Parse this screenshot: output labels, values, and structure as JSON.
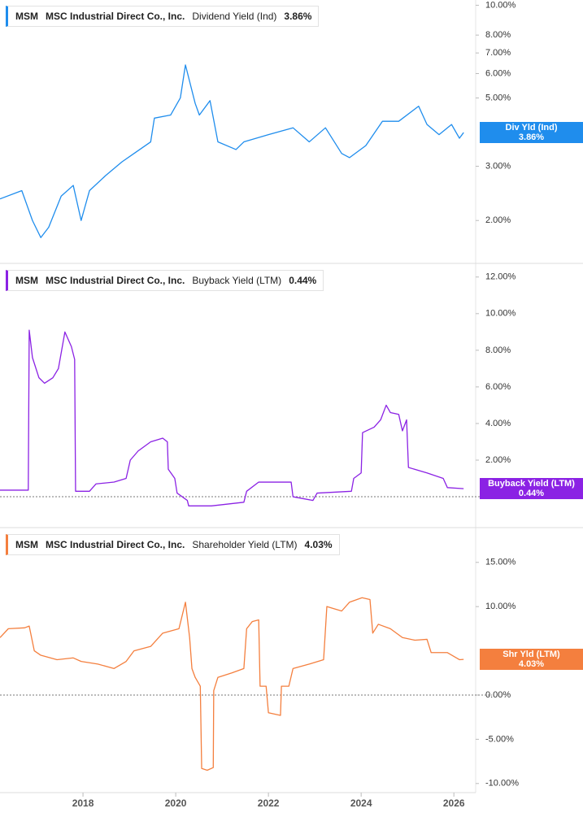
{
  "chart_data": [
    {
      "type": "line",
      "ticker": "MSM",
      "company": "MSC Industrial Direct Co., Inc.",
      "log_scale": true,
      "zero_line": false,
      "xlim": [
        2016.21,
        2026.47
      ],
      "ylim": [
        1.46,
        10.4
      ],
      "yticks": [
        {
          "value": 2,
          "label": "2.00%"
        },
        {
          "value": 3,
          "label": "3.00%"
        },
        {
          "value": 5,
          "label": "5.00%"
        },
        {
          "value": 6,
          "label": "6.00%"
        },
        {
          "value": 7,
          "label": "7.00%"
        },
        {
          "value": 8,
          "label": "8.00%"
        },
        {
          "value": 10,
          "label": "10.00%"
        }
      ],
      "x": [
        2016.21,
        2016.68,
        2016.91,
        2017.09,
        2017.26,
        2017.53,
        2017.79,
        2017.96,
        2018.14,
        2018.49,
        2018.84,
        2019.1,
        2019.46,
        2019.54,
        2019.89,
        2020.1,
        2020.21,
        2020.42,
        2020.51,
        2020.74,
        2020.91,
        2021.3,
        2021.47,
        2022.0,
        2022.53,
        2022.88,
        2023.23,
        2023.58,
        2023.75,
        2024.1,
        2024.46,
        2024.81,
        2025.24,
        2025.42,
        2025.68,
        2025.95,
        2026.12,
        2026.21
      ],
      "series": [
        {
          "name": "Dividend Yield (Ind)",
          "badge_label": "Div Yld (Ind)",
          "color": "#1f8ded",
          "values": [
            2.35,
            2.5,
            2.0,
            1.76,
            1.9,
            2.4,
            2.6,
            2.0,
            2.5,
            2.8,
            3.1,
            3.3,
            3.6,
            4.3,
            4.4,
            5.0,
            6.4,
            4.8,
            4.4,
            4.9,
            3.6,
            3.4,
            3.6,
            3.8,
            4.0,
            3.6,
            4.0,
            3.3,
            3.2,
            3.5,
            4.2,
            4.2,
            4.7,
            4.1,
            3.8,
            4.1,
            3.7,
            3.86
          ],
          "value_labels": [
            null,
            null,
            null,
            null,
            null,
            null,
            null,
            null,
            null,
            null,
            null,
            null,
            null,
            null,
            null,
            null,
            null,
            null,
            null,
            null,
            null,
            null,
            null,
            null,
            null,
            null,
            null,
            null,
            null,
            null,
            null,
            null,
            null,
            null,
            null,
            null,
            null,
            "3.86%"
          ]
        }
      ]
    },
    {
      "type": "line",
      "ticker": "MSM",
      "company": "MSC Industrial Direct Co., Inc.",
      "log_scale": false,
      "zero_line": true,
      "xlim": [
        2016.21,
        2026.47
      ],
      "ylim": [
        -1.64,
        12.7
      ],
      "yticks": [
        {
          "value": 2,
          "label": "2.00%"
        },
        {
          "value": 4,
          "label": "4.00%"
        },
        {
          "value": 6,
          "label": "6.00%"
        },
        {
          "value": 8,
          "label": "8.00%"
        },
        {
          "value": 10,
          "label": "10.00%"
        },
        {
          "value": 12,
          "label": "12.00%"
        }
      ],
      "x": [
        2016.21,
        2016.82,
        2016.84,
        2016.91,
        2017.05,
        2017.17,
        2017.35,
        2017.47,
        2017.61,
        2017.75,
        2017.82,
        2017.84,
        2018.14,
        2018.28,
        2018.67,
        2018.93,
        2019.02,
        2019.19,
        2019.46,
        2019.72,
        2019.82,
        2019.84,
        2019.98,
        2020.03,
        2020.25,
        2020.28,
        2020.77,
        2021.47,
        2021.53,
        2021.79,
        2022.49,
        2022.53,
        2022.96,
        2023.05,
        2023.79,
        2023.84,
        2024.0,
        2024.03,
        2024.28,
        2024.42,
        2024.54,
        2024.63,
        2024.81,
        2024.89,
        2024.98,
        2025.02,
        2025.42,
        2025.77,
        2025.86,
        2026.21
      ],
      "series": [
        {
          "name": "Buyback Yield (LTM)",
          "badge_label": "Buyback Yield (LTM)",
          "color": "#8b22e4",
          "values": [
            0.36,
            0.36,
            9.1,
            7.6,
            6.5,
            6.2,
            6.5,
            7.0,
            9.0,
            8.2,
            7.5,
            0.3,
            0.3,
            0.7,
            0.8,
            1.0,
            2.0,
            2.5,
            3.0,
            3.2,
            3.0,
            1.5,
            1.0,
            0.2,
            -0.2,
            -0.5,
            -0.5,
            -0.3,
            0.3,
            0.8,
            0.8,
            0.0,
            -0.2,
            0.2,
            0.3,
            1.0,
            1.3,
            3.5,
            3.8,
            4.2,
            5.0,
            4.6,
            4.5,
            3.6,
            4.2,
            1.6,
            1.3,
            1.0,
            0.5,
            0.44
          ],
          "value_labels": [
            null,
            null,
            null,
            null,
            null,
            null,
            null,
            null,
            null,
            null,
            null,
            null,
            null,
            null,
            null,
            null,
            null,
            null,
            null,
            null,
            null,
            null,
            null,
            null,
            null,
            null,
            null,
            null,
            null,
            null,
            null,
            null,
            null,
            null,
            null,
            null,
            null,
            null,
            null,
            null,
            null,
            null,
            null,
            null,
            null,
            null,
            null,
            null,
            null,
            "0.44%"
          ]
        }
      ]
    },
    {
      "type": "line",
      "ticker": "MSM",
      "company": "MSC Industrial Direct Co., Inc.",
      "log_scale": false,
      "zero_line": true,
      "xlim": [
        2016.21,
        2026.47
      ],
      "ylim": [
        -11.03,
        18.84
      ],
      "yticks": [
        {
          "value": -10,
          "label": "-10.00%"
        },
        {
          "value": -5,
          "label": "-5.00%"
        },
        {
          "value": 0,
          "label": "0.00%"
        },
        {
          "value": 10,
          "label": "10.00%"
        },
        {
          "value": 15,
          "label": "15.00%"
        }
      ],
      "xticks": [
        2018,
        2020,
        2022,
        2024,
        2026
      ],
      "x": [
        2016.21,
        2016.39,
        2016.74,
        2016.84,
        2016.95,
        2017.09,
        2017.44,
        2017.79,
        2017.96,
        2018.32,
        2018.67,
        2018.93,
        2019.1,
        2019.46,
        2019.72,
        2020.07,
        2020.21,
        2020.3,
        2020.35,
        2020.42,
        2020.53,
        2020.56,
        2020.68,
        2020.81,
        2020.82,
        2020.91,
        2021.21,
        2021.47,
        2021.53,
        2021.65,
        2021.79,
        2021.82,
        2021.95,
        2022.0,
        2022.26,
        2022.28,
        2022.44,
        2022.53,
        2022.88,
        2023.19,
        2023.26,
        2023.58,
        2023.75,
        2024.02,
        2024.19,
        2024.25,
        2024.37,
        2024.63,
        2024.89,
        2025.16,
        2025.42,
        2025.51,
        2025.86,
        2026.12,
        2026.21
      ],
      "series": [
        {
          "name": "Shareholder Yield (LTM)",
          "badge_label": "Shr Yld (LTM)",
          "color": "#f47f3e",
          "values": [
            6.5,
            7.5,
            7.6,
            7.8,
            5.0,
            4.5,
            4.0,
            4.2,
            3.8,
            3.5,
            3.0,
            3.8,
            5.0,
            5.5,
            7.0,
            7.5,
            10.5,
            6.5,
            3.0,
            2.0,
            1.0,
            -8.3,
            -8.5,
            -8.2,
            0.5,
            2.0,
            2.5,
            3.0,
            7.5,
            8.3,
            8.5,
            1.0,
            1.0,
            -2.0,
            -2.3,
            1.0,
            1.0,
            3.0,
            3.5,
            4.0,
            10.0,
            9.5,
            10.5,
            11.0,
            10.8,
            7.0,
            8.0,
            7.5,
            6.5,
            6.2,
            6.3,
            4.8,
            4.8,
            4.0,
            4.03
          ],
          "value_labels": [
            null,
            null,
            null,
            null,
            null,
            null,
            null,
            null,
            null,
            null,
            null,
            null,
            null,
            null,
            null,
            null,
            null,
            null,
            null,
            null,
            null,
            null,
            null,
            null,
            null,
            null,
            null,
            null,
            null,
            null,
            null,
            null,
            null,
            null,
            null,
            null,
            null,
            null,
            null,
            null,
            null,
            null,
            null,
            null,
            null,
            null,
            null,
            null,
            null,
            null,
            null,
            null,
            null,
            null,
            "4.03%"
          ]
        }
      ]
    }
  ]
}
